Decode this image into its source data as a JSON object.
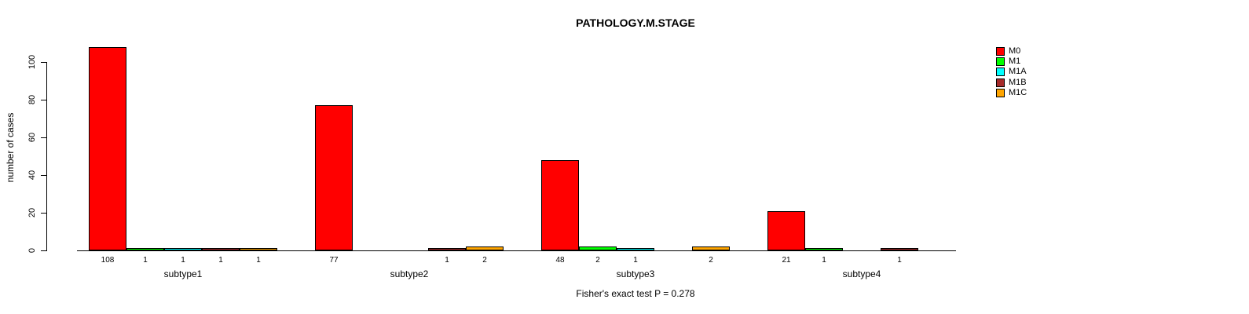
{
  "chart_data": {
    "type": "bar",
    "title": "PATHOLOGY.M.STAGE",
    "ylabel": "number of cases",
    "xlabel": "",
    "footer": "Fisher's exact test P = 0.278",
    "categories": [
      "subtype1",
      "subtype2",
      "subtype3",
      "subtype4"
    ],
    "series": [
      {
        "name": "M0",
        "color": "#FF0000",
        "values": [
          108,
          77,
          48,
          21
        ]
      },
      {
        "name": "M1",
        "color": "#00FF00",
        "values": [
          1,
          0,
          2,
          1
        ]
      },
      {
        "name": "M1A",
        "color": "#00FFFF",
        "values": [
          1,
          0,
          1,
          0
        ]
      },
      {
        "name": "M1B",
        "color": "#A52A2A",
        "values": [
          1,
          1,
          0,
          1
        ]
      },
      {
        "name": "M1C",
        "color": "#FFA500",
        "values": [
          1,
          2,
          2,
          0
        ]
      }
    ],
    "yticks": [
      0,
      20,
      40,
      60,
      80,
      100
    ],
    "ylim": [
      0,
      100
    ],
    "grid": false,
    "legend_position": "right",
    "bar_labels_shown": true,
    "zero_bars_hidden": true
  }
}
